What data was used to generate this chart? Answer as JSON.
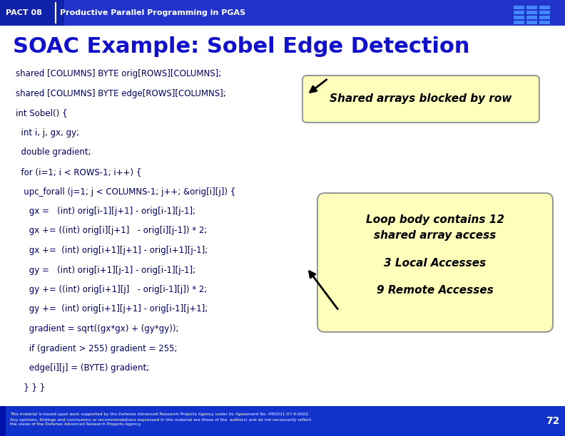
{
  "header_bg": "#2233cc",
  "header_text_left": "PACT 08",
  "header_text_right": "Productive Parallel Programming in PGAS",
  "main_bg": "#ffffff",
  "title": "SOAC Example: Sobel Edge Detection",
  "title_color": "#1111cc",
  "footer_bg": "#1133cc",
  "footer_text": "This material is based upon work supported by the Defense Advanced Research Projects Agency under its Agreement No. HR0011-07-9-0002.\nAny opinions, findings and conclusions or recommendations expressed in this material are those of the  authors) and do not necessarily reflect\nthe views of the Defense Advanced Research Projects Agency.",
  "footer_number": "72",
  "code_lines": [
    "shared [COLUMNS] BYTE orig[ROWS][COLUMNS];",
    "shared [COLUMNS] BYTE edge[ROWS][COLUMNS];",
    "int Sobel() {",
    "  int i, j, gx, gy;",
    "  double gradient;",
    "  for (i=1; i < ROWS-1; i++) {",
    "   upc_forall (j=1; j < COLUMNS-1; j++; &orig[i][j]) {",
    "     gx =   (int) orig[i-1][j+1] - orig[i-1][j-1];",
    "     gx += ((int) orig[i][j+1]   - orig[i][j-1]) * 2;",
    "     gx +=  (int) orig[i+1][j+1] - orig[i+1][j-1];",
    "     gy =   (int) orig[i+1][j-1] - orig[i-1][j-1];",
    "     gy += ((int) orig[i+1][j]   - orig[i-1][j]) * 2;",
    "     gy +=  (int) orig[i+1][j+1] - orig[i-1][j+1];",
    "     gradient = sqrt((gx*gx) + (gy*gy));",
    "     if (gradient > 255) gradient = 255;",
    "     edge[i][j] = (BYTE) gradient;",
    "   } } }"
  ],
  "code_color": "#000066",
  "code_font_size": 8.5,
  "callout_fill": "#ffffbb",
  "callout_border": "#999999",
  "callout1_text": "Shared arrays blocked by row",
  "callout2_line1": "Loop body contains 12",
  "callout2_line2": "shared array access",
  "callout2_line3": "3 Local Accesses",
  "callout2_line4": "9 Remote Accesses"
}
